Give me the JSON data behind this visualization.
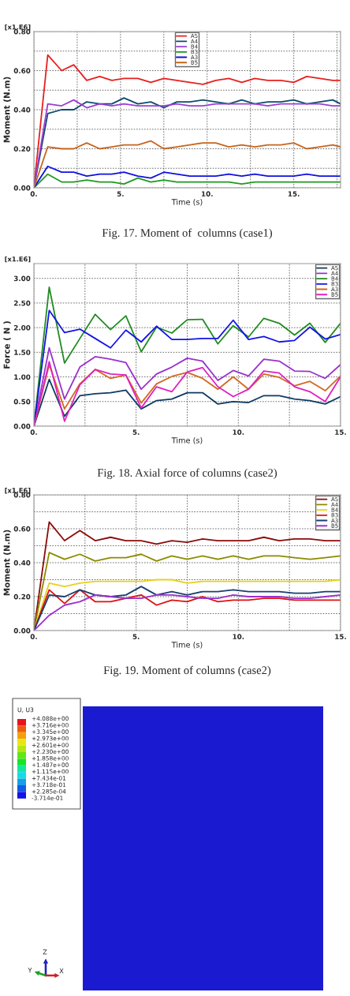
{
  "chart_data": [
    {
      "type": "line",
      "title": "Fig. 17. Moment of  columns (case1)",
      "xlabel": "Time (s)",
      "ylabel": "Moment (N.m)",
      "annotations": [
        "[x1.E6]"
      ],
      "x": [
        0,
        0.8,
        1.6,
        2.3,
        3.05,
        3.8,
        4.5,
        5.2,
        6.0,
        6.75,
        7.5,
        8.25,
        9.0,
        9.75,
        10.5,
        11.25,
        12.0,
        12.75,
        13.5,
        14.25,
        15.0,
        15.75,
        16.5,
        17.25,
        17.7
      ],
      "series": [
        {
          "name": "A5",
          "color": "#e8201e",
          "values": [
            0,
            0.68,
            0.6,
            0.63,
            0.55,
            0.57,
            0.55,
            0.56,
            0.56,
            0.54,
            0.56,
            0.55,
            0.54,
            0.53,
            0.55,
            0.56,
            0.54,
            0.56,
            0.55,
            0.55,
            0.54,
            0.57,
            0.56,
            0.55,
            0.55
          ]
        },
        {
          "name": "A4",
          "color": "#0d4a6e",
          "values": [
            0,
            0.38,
            0.4,
            0.4,
            0.44,
            0.43,
            0.43,
            0.46,
            0.43,
            0.44,
            0.41,
            0.44,
            0.44,
            0.45,
            0.44,
            0.43,
            0.45,
            0.43,
            0.44,
            0.44,
            0.45,
            0.43,
            0.44,
            0.45,
            0.43
          ]
        },
        {
          "name": "B4",
          "color": "#9b3fd0",
          "values": [
            0,
            0.43,
            0.42,
            0.45,
            0.41,
            0.43,
            0.42,
            0.43,
            0.42,
            0.42,
            0.42,
            0.43,
            0.42,
            0.42,
            0.43,
            0.43,
            0.43,
            0.43,
            0.42,
            0.43,
            0.43,
            0.43,
            0.43,
            0.42,
            0.42
          ]
        },
        {
          "name": "B3",
          "color": "#1f9a1f",
          "values": [
            0,
            0.07,
            0.03,
            0.03,
            0.04,
            0.03,
            0.03,
            0.02,
            0.05,
            0.03,
            0.04,
            0.03,
            0.03,
            0.03,
            0.03,
            0.03,
            0.02,
            0.03,
            0.03,
            0.03,
            0.03,
            0.03,
            0.03,
            0.03,
            0.03
          ]
        },
        {
          "name": "A3",
          "color": "#1010e0",
          "values": [
            0,
            0.11,
            0.08,
            0.08,
            0.06,
            0.07,
            0.07,
            0.08,
            0.06,
            0.05,
            0.08,
            0.07,
            0.06,
            0.06,
            0.06,
            0.07,
            0.06,
            0.07,
            0.06,
            0.06,
            0.06,
            0.07,
            0.06,
            0.06,
            0.06
          ]
        },
        {
          "name": "B5",
          "color": "#c8641c",
          "values": [
            0,
            0.21,
            0.2,
            0.2,
            0.23,
            0.2,
            0.21,
            0.22,
            0.22,
            0.24,
            0.2,
            0.21,
            0.22,
            0.23,
            0.23,
            0.21,
            0.22,
            0.21,
            0.22,
            0.22,
            0.23,
            0.2,
            0.21,
            0.22,
            0.21
          ]
        }
      ],
      "xlim": [
        0,
        17.7
      ],
      "ylim": [
        0,
        0.8
      ],
      "xticks": [
        {
          "value": 0,
          "label": "0."
        },
        {
          "value": 2.5,
          "label": null
        },
        {
          "value": 5,
          "label": "5."
        },
        {
          "value": 7.5,
          "label": null
        },
        {
          "value": 10,
          "label": "10."
        },
        {
          "value": 12.5,
          "label": null
        },
        {
          "value": 15,
          "label": "15."
        },
        {
          "value": 17.5,
          "label": null
        }
      ],
      "yticks": [
        {
          "value": 0,
          "label": "0.00"
        },
        {
          "value": 0.1,
          "label": null
        },
        {
          "value": 0.2,
          "label": "0.20"
        },
        {
          "value": 0.3,
          "label": null
        },
        {
          "value": 0.4,
          "label": "0.40"
        },
        {
          "value": 0.5,
          "label": null
        },
        {
          "value": 0.6,
          "label": "0.60"
        },
        {
          "value": 0.7,
          "label": null
        },
        {
          "value": 0.8,
          "label": "0.80"
        }
      ],
      "grid": true,
      "legend": "top",
      "line_style": "solid",
      "marker": "none"
    },
    {
      "type": "line",
      "title": "Fig. 18. Axial force of columns (case2)",
      "xlabel": "Time (s)",
      "ylabel": "Force ( N )",
      "annotations": [
        "[x1.E6]"
      ],
      "x": [
        0,
        0.75,
        1.5,
        2.25,
        3.0,
        3.75,
        4.5,
        5.25,
        6.0,
        6.75,
        7.5,
        8.25,
        9.0,
        9.75,
        10.5,
        11.25,
        12.0,
        12.75,
        13.5,
        14.25,
        15.0
      ],
      "series": [
        {
          "name": "A5",
          "color": "#0f3b63",
          "values": [
            0,
            0.95,
            0.2,
            0.62,
            0.66,
            0.68,
            0.73,
            0.35,
            0.52,
            0.55,
            0.68,
            0.68,
            0.45,
            0.5,
            0.48,
            0.62,
            0.62,
            0.55,
            0.52,
            0.45,
            0.6
          ]
        },
        {
          "name": "A4",
          "color": "#9932cc",
          "values": [
            0,
            1.59,
            0.55,
            1.2,
            1.41,
            1.36,
            1.29,
            0.75,
            1.06,
            1.2,
            1.38,
            1.32,
            0.93,
            1.13,
            1.02,
            1.36,
            1.32,
            1.12,
            1.11,
            0.97,
            1.25
          ]
        },
        {
          "name": "B4",
          "color": "#228b22",
          "values": [
            0,
            2.82,
            1.28,
            1.78,
            2.27,
            1.96,
            2.24,
            1.51,
            2.01,
            1.89,
            2.16,
            2.17,
            1.67,
            2.04,
            1.81,
            2.19,
            2.09,
            1.85,
            2.09,
            1.7,
            2.09
          ]
        },
        {
          "name": "B3",
          "color": "#1414e6",
          "values": [
            0,
            2.35,
            1.9,
            1.97,
            1.78,
            1.59,
            1.95,
            1.71,
            2.03,
            1.76,
            1.76,
            1.78,
            1.78,
            2.15,
            1.76,
            1.82,
            1.71,
            1.74,
            2.01,
            1.77,
            1.86
          ]
        },
        {
          "name": "A3",
          "color": "#d2691e",
          "values": [
            0,
            1.25,
            0.35,
            0.86,
            1.15,
            0.97,
            1.04,
            0.47,
            0.86,
            1.01,
            1.09,
            0.97,
            0.75,
            1.0,
            0.75,
            1.06,
            0.99,
            0.82,
            0.91,
            0.72,
            1.02
          ]
        },
        {
          "name": "B5",
          "color": "#e020c0",
          "values": [
            0,
            1.31,
            0.1,
            0.84,
            1.15,
            1.06,
            1.04,
            0.37,
            0.8,
            0.7,
            1.1,
            1.19,
            0.8,
            0.6,
            0.75,
            1.12,
            1.08,
            0.8,
            0.7,
            0.5,
            1.0
          ]
        }
      ],
      "xlim": [
        0,
        15
      ],
      "ylim": [
        0,
        3.3
      ],
      "xticks": [
        {
          "value": 0,
          "label": "0."
        },
        {
          "value": 2.5,
          "label": null
        },
        {
          "value": 5,
          "label": "5."
        },
        {
          "value": 7.5,
          "label": null
        },
        {
          "value": 10,
          "label": "10."
        },
        {
          "value": 12.5,
          "label": null
        },
        {
          "value": 15,
          "label": "15."
        }
      ],
      "yticks": [
        {
          "value": 0,
          "label": "0.00"
        },
        {
          "value": 0.5,
          "label": "0.50"
        },
        {
          "value": 1.0,
          "label": "1.00"
        },
        {
          "value": 1.5,
          "label": "1.50"
        },
        {
          "value": 2.0,
          "label": "2.00"
        },
        {
          "value": 2.5,
          "label": "2.50"
        },
        {
          "value": 3.0,
          "label": "3.00"
        }
      ],
      "grid": true,
      "legend": "top right",
      "line_style": "solid",
      "marker": "none"
    },
    {
      "type": "line",
      "title": "Fig. 19. Moment of columns (case2)",
      "xlabel": "Time (s)",
      "ylabel": "Moment (N.m)",
      "annotations": [
        "[x1.E6]"
      ],
      "x": [
        0,
        0.75,
        1.5,
        2.25,
        3.0,
        3.75,
        4.5,
        5.25,
        6.0,
        6.75,
        7.5,
        8.25,
        9.0,
        9.75,
        10.5,
        11.25,
        12.0,
        12.75,
        13.5,
        14.25,
        15.0
      ],
      "series": [
        {
          "name": "A5",
          "color": "#8b0a0a",
          "values": [
            0,
            0.64,
            0.53,
            0.59,
            0.53,
            0.55,
            0.53,
            0.53,
            0.51,
            0.53,
            0.52,
            0.54,
            0.53,
            0.53,
            0.53,
            0.55,
            0.53,
            0.54,
            0.54,
            0.53,
            0.53
          ]
        },
        {
          "name": "A4",
          "color": "#8b8b00",
          "values": [
            0,
            0.46,
            0.42,
            0.45,
            0.41,
            0.43,
            0.43,
            0.45,
            0.41,
            0.44,
            0.42,
            0.44,
            0.42,
            0.44,
            0.42,
            0.44,
            0.44,
            0.43,
            0.42,
            0.43,
            0.44
          ]
        },
        {
          "name": "B4",
          "color": "#e6d21e",
          "values": [
            0,
            0.28,
            0.26,
            0.28,
            0.29,
            0.29,
            0.29,
            0.29,
            0.3,
            0.3,
            0.28,
            0.29,
            0.29,
            0.29,
            0.29,
            0.29,
            0.29,
            0.29,
            0.29,
            0.29,
            0.3
          ]
        },
        {
          "name": "B3",
          "color": "#e01010",
          "values": [
            0,
            0.24,
            0.16,
            0.24,
            0.17,
            0.17,
            0.19,
            0.21,
            0.15,
            0.18,
            0.17,
            0.2,
            0.17,
            0.18,
            0.18,
            0.19,
            0.19,
            0.18,
            0.18,
            0.18,
            0.18
          ]
        },
        {
          "name": "A3",
          "color": "#1a3f6e",
          "values": [
            0,
            0.21,
            0.2,
            0.24,
            0.21,
            0.2,
            0.21,
            0.26,
            0.21,
            0.23,
            0.21,
            0.23,
            0.23,
            0.24,
            0.23,
            0.23,
            0.23,
            0.22,
            0.22,
            0.23,
            0.23
          ]
        },
        {
          "name": "B5",
          "color": "#9b30d0",
          "values": [
            0,
            0.09,
            0.15,
            0.17,
            0.21,
            0.2,
            0.19,
            0.19,
            0.21,
            0.21,
            0.2,
            0.19,
            0.19,
            0.21,
            0.2,
            0.2,
            0.2,
            0.19,
            0.19,
            0.2,
            0.21
          ]
        }
      ],
      "xlim": [
        0,
        15
      ],
      "ylim": [
        0,
        0.8
      ],
      "xticks": [
        {
          "value": 0,
          "label": "0."
        },
        {
          "value": 2.5,
          "label": null
        },
        {
          "value": 5,
          "label": "5."
        },
        {
          "value": 7.5,
          "label": null
        },
        {
          "value": 10,
          "label": "10."
        },
        {
          "value": 12.5,
          "label": null
        },
        {
          "value": 15,
          "label": "15."
        }
      ],
      "yticks": [
        {
          "value": 0,
          "label": "0.00"
        },
        {
          "value": 0.1,
          "label": null
        },
        {
          "value": 0.2,
          "label": "0.20"
        },
        {
          "value": 0.3,
          "label": null
        },
        {
          "value": 0.4,
          "label": "0.40"
        },
        {
          "value": 0.5,
          "label": null
        },
        {
          "value": 0.6,
          "label": "0.60"
        },
        {
          "value": 0.7,
          "label": null
        },
        {
          "value": 0.8,
          "label": "0.80"
        }
      ],
      "grid": true,
      "legend": "top right",
      "line_style": "solid",
      "marker": "none"
    },
    {
      "type": "other",
      "legend_title": "U, U3",
      "categories": [
        "+4.088e+00",
        "+3.716e+00",
        "+3.345e+00",
        "+2.973e+00",
        "+2.601e+00",
        "+2.230e+00",
        "+1.858e+00",
        "+1.487e+00",
        "+1.115e+00",
        "+7.434e-01",
        "+3.718e-01",
        "+2.285e-04",
        "-3.714e-01"
      ],
      "colors": [
        "#e8141c",
        "#f05a14",
        "#f5a00a",
        "#e6e614",
        "#b4e614",
        "#64e614",
        "#14e628",
        "#14e6a0",
        "#14dce6",
        "#14a0e6",
        "#145ae6",
        "#1414e6"
      ],
      "annotations": [
        "Z",
        "Y",
        "X"
      ]
    }
  ]
}
